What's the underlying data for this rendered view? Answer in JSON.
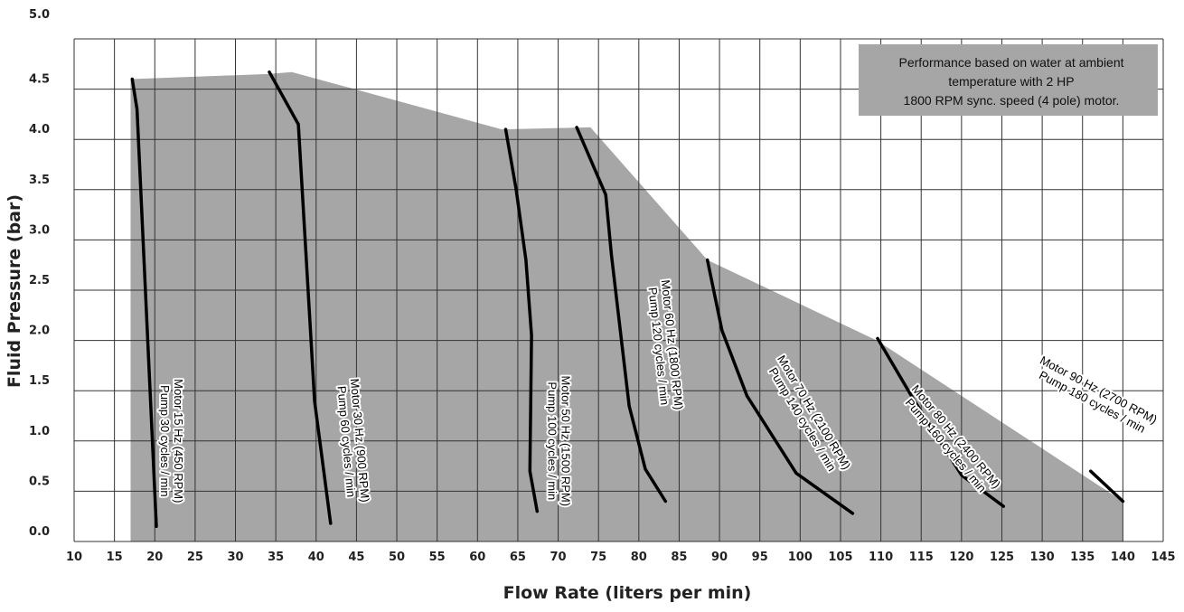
{
  "chart_data": {
    "type": "line",
    "xlabel": "Flow Rate (liters per min)",
    "ylabel": "Fluid Pressure (bar)",
    "xlim": [
      10,
      145
    ],
    "ylim": [
      0,
      5
    ],
    "x_ticks": [
      "10",
      "15",
      "20",
      "25",
      "30",
      "35",
      "40",
      "45",
      "50",
      "55",
      "60",
      "65",
      "70",
      "75",
      "80",
      "85",
      "90",
      "95",
      "100",
      "105",
      "110",
      "115",
      "120",
      "125",
      "130",
      "135",
      "140",
      "145"
    ],
    "y_ticks": [
      "0.0",
      "0.5",
      "1.0",
      "1.5",
      "2.0",
      "2.5",
      "3.0",
      "3.5",
      "4.0",
      "4.5",
      "5.0"
    ],
    "grid": true,
    "note": [
      "Performance based on water at ambient",
      "temperature with 2 HP",
      "1800 RPM sync. speed (4 pole) motor."
    ],
    "operating_region": {
      "color": "#a6a6a6",
      "points": [
        [
          17,
          0
        ],
        [
          17,
          4.6
        ],
        [
          34,
          4.65
        ],
        [
          37,
          4.67
        ],
        [
          63,
          4.1
        ],
        [
          74,
          4.12
        ],
        [
          88.5,
          2.8
        ],
        [
          109.5,
          2.0
        ],
        [
          140,
          0.4
        ],
        [
          140,
          0
        ]
      ]
    },
    "curve_color": "#000000",
    "series": [
      {
        "motor": "Motor 15 Hz (450 RPM)",
        "pump": "Pump 30 cycles / min",
        "x": [
          17.2,
          17.8,
          20.2
        ],
        "y": [
          4.6,
          4.3,
          0.15
        ]
      },
      {
        "motor": "Motor 30 Hz (900 RPM)",
        "pump": "Pump 60 cycles / min",
        "x": [
          34.2,
          37.8,
          39.3,
          39.8,
          41.8
        ],
        "y": [
          4.67,
          4.15,
          2.1,
          1.4,
          0.18
        ]
      },
      {
        "motor": "Motor 50 Hz (1500 RPM)",
        "pump": "Pump 100 cycles / min",
        "x": [
          63.5,
          64.8,
          66.0,
          66.7,
          66.5,
          67.4
        ],
        "y": [
          4.1,
          3.5,
          2.8,
          2.05,
          0.7,
          0.3
        ]
      },
      {
        "motor": "Motor 60 Hz (1800 RPM)",
        "pump": "Pump 120 cycles / min",
        "x": [
          72.3,
          75.9,
          76.6,
          78.8,
          80.8,
          83.3
        ],
        "y": [
          4.12,
          3.45,
          2.85,
          1.35,
          0.72,
          0.4
        ]
      },
      {
        "motor": "Motor 70 Hz (2100 RPM)",
        "pump": "Pump 140 cycles / min",
        "x": [
          88.5,
          90.3,
          93.4,
          99.5,
          106.5
        ],
        "y": [
          2.8,
          2.1,
          1.45,
          0.68,
          0.28
        ]
      },
      {
        "motor": "Motor 80 Hz (2400 RPM)",
        "pump": "Pump 160 cycles / min",
        "x": [
          109.6,
          114.0,
          120.0,
          125.2
        ],
        "y": [
          2.02,
          1.42,
          0.66,
          0.35
        ]
      },
      {
        "motor": "Motor 90 Hz (2700 RPM)",
        "pump": "Pump 180 cycles / min",
        "x": [
          136.0,
          140.0
        ],
        "y": [
          0.7,
          0.4
        ]
      }
    ]
  }
}
